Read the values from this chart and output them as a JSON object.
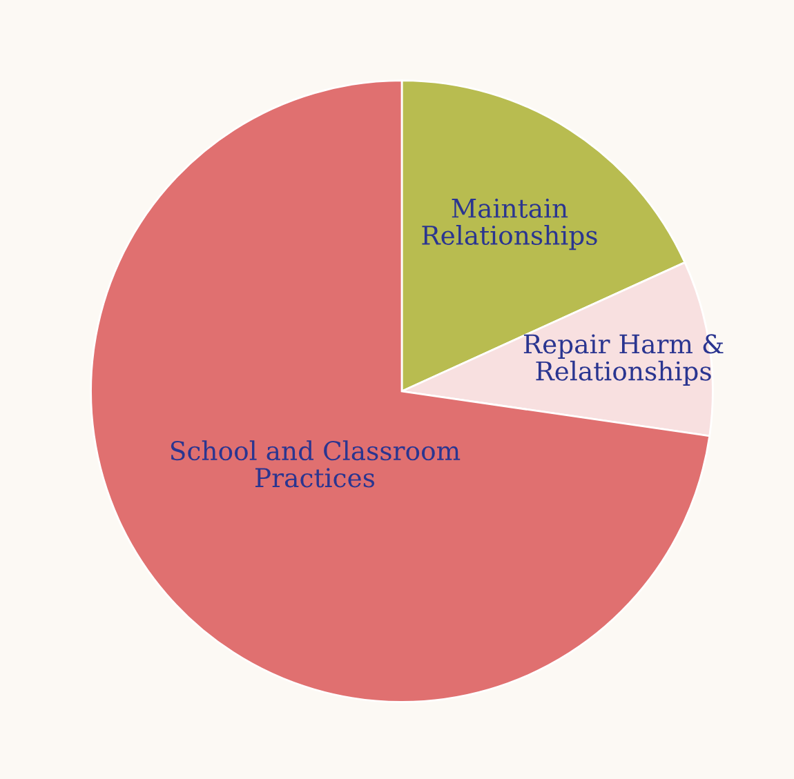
{
  "chart_data": {
    "type": "pie",
    "categories": [
      "Maintain\nRelationships",
      "Repair Harm &\nRelationships",
      "School and Classroom\nPractices"
    ],
    "values": [
      18.2,
      9.1,
      72.7
    ],
    "colors": [
      "#b8bc50",
      "#f8e0e0",
      "#e07070"
    ]
  }
}
